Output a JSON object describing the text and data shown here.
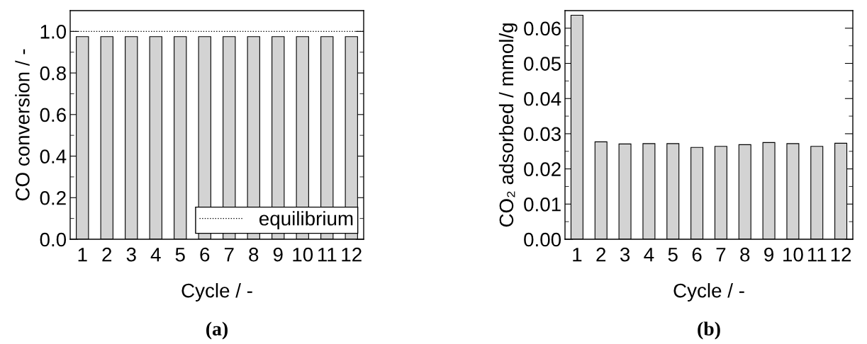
{
  "chart_data": [
    {
      "type": "bar",
      "xlabel": "Cycle / -",
      "ylabel": "CO conversion / -",
      "categories": [
        "1",
        "2",
        "3",
        "4",
        "5",
        "6",
        "7",
        "8",
        "9",
        "10",
        "11",
        "12"
      ],
      "color": "#d3d3d3",
      "values": [
        0.975,
        0.975,
        0.975,
        0.975,
        0.975,
        0.975,
        0.975,
        0.975,
        0.975,
        0.975,
        0.975,
        0.975
      ],
      "ylim": [
        0,
        1.1
      ],
      "yticks": [
        {
          "value": 0,
          "label": "0.0"
        },
        {
          "value": 0.2,
          "label": "0.2"
        },
        {
          "value": 0.4,
          "label": "0.4"
        },
        {
          "value": 0.6,
          "label": "0.6"
        },
        {
          "value": 0.8,
          "label": "0.8"
        },
        {
          "value": 1,
          "label": "1.0"
        }
      ],
      "ref_lines": [
        {
          "axis": "y",
          "value": 1.0,
          "label": "equilibrium",
          "color": "#000000",
          "line_style": "dotted"
        }
      ],
      "legend": "bottom right",
      "grid": false,
      "annotations": [
        "(a)"
      ]
    },
    {
      "type": "bar",
      "xlabel": "Cycle / -",
      "ylabel": "CO₂ adsorbed / mmol/g",
      "categories": [
        "1",
        "2",
        "3",
        "4",
        "5",
        "6",
        "7",
        "8",
        "9",
        "10",
        "11",
        "12"
      ],
      "color": "#d3d3d3",
      "values": [
        0.0637,
        0.0277,
        0.0271,
        0.0272,
        0.0272,
        0.0261,
        0.0264,
        0.0269,
        0.0275,
        0.0272,
        0.0264,
        0.0273
      ],
      "ylim": [
        0,
        0.065
      ],
      "yticks": [
        {
          "value": 0,
          "label": "0.00"
        },
        {
          "value": 0.01,
          "label": "0.01"
        },
        {
          "value": 0.02,
          "label": "0.02"
        },
        {
          "value": 0.03,
          "label": "0.03"
        },
        {
          "value": 0.04,
          "label": "0.04"
        },
        {
          "value": 0.05,
          "label": "0.05"
        },
        {
          "value": 0.06,
          "label": "0.06"
        }
      ],
      "grid": false,
      "annotations": [
        "(b)"
      ]
    }
  ]
}
